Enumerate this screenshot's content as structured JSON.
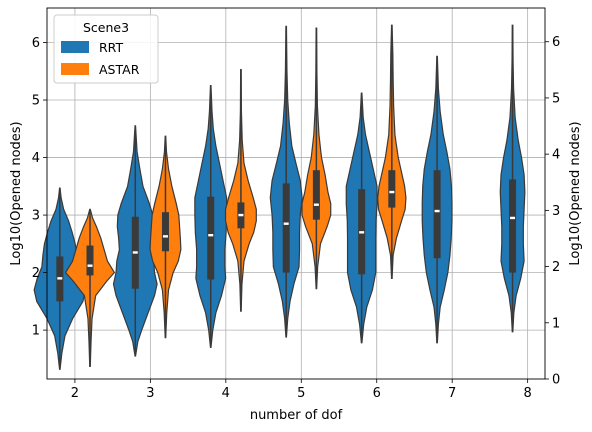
{
  "chart_data": {
    "type": "violin",
    "title": "",
    "xlabel": "number of dof",
    "ylabel_left": "Log10(Opened nodes)",
    "ylabel_right": "Log10(Opened nodes)",
    "categories": [
      "2",
      "3",
      "4",
      "5",
      "6",
      "7",
      "8"
    ],
    "ylim": [
      0.15,
      6.6
    ],
    "yticks": [
      1,
      2,
      3,
      4,
      5,
      6
    ],
    "right_ylim": [
      0,
      6.6
    ],
    "right_yticks": [
      0,
      1,
      2,
      3,
      4,
      5,
      6
    ],
    "grid": true,
    "legend": {
      "title": "Scene3",
      "placement": "top-left"
    },
    "series": [
      {
        "name": "RRT",
        "color": "#1f77b4",
        "violins": [
          {
            "category": "2",
            "min": 0.32,
            "max": 3.47,
            "q1": 1.5,
            "median": 1.9,
            "q3": 2.28,
            "profile": [
              [
                0.32,
                0.01
              ],
              [
                0.6,
                0.08
              ],
              [
                0.9,
                0.2
              ],
              [
                1.2,
                0.5
              ],
              [
                1.5,
                0.9
              ],
              [
                1.7,
                1.0
              ],
              [
                1.9,
                0.88
              ],
              [
                2.1,
                0.7
              ],
              [
                2.3,
                0.66
              ],
              [
                2.5,
                0.6
              ],
              [
                2.7,
                0.48
              ],
              [
                2.9,
                0.34
              ],
              [
                3.1,
                0.15
              ],
              [
                3.3,
                0.05
              ],
              [
                3.47,
                0.01
              ]
            ]
          },
          {
            "category": "3",
            "min": 0.55,
            "max": 4.55,
            "q1": 1.72,
            "median": 2.35,
            "q3": 2.97,
            "profile": [
              [
                0.55,
                0.01
              ],
              [
                0.8,
                0.1
              ],
              [
                1.0,
                0.25
              ],
              [
                1.3,
                0.5
              ],
              [
                1.6,
                0.75
              ],
              [
                1.8,
                0.85
              ],
              [
                2.0,
                0.75
              ],
              [
                2.2,
                0.72
              ],
              [
                2.4,
                0.62
              ],
              [
                2.6,
                0.65
              ],
              [
                2.8,
                0.7
              ],
              [
                3.0,
                0.68
              ],
              [
                3.2,
                0.55
              ],
              [
                3.5,
                0.3
              ],
              [
                3.8,
                0.18
              ],
              [
                4.1,
                0.07
              ],
              [
                4.55,
                0.01
              ]
            ]
          },
          {
            "category": "4",
            "min": 0.7,
            "max": 5.25,
            "q1": 1.88,
            "median": 2.65,
            "q3": 3.32,
            "profile": [
              [
                0.7,
                0.01
              ],
              [
                1.0,
                0.08
              ],
              [
                1.3,
                0.2
              ],
              [
                1.6,
                0.42
              ],
              [
                1.9,
                0.58
              ],
              [
                2.1,
                0.55
              ],
              [
                2.4,
                0.55
              ],
              [
                2.7,
                0.6
              ],
              [
                3.0,
                0.62
              ],
              [
                3.3,
                0.62
              ],
              [
                3.6,
                0.48
              ],
              [
                3.9,
                0.34
              ],
              [
                4.2,
                0.2
              ],
              [
                4.5,
                0.1
              ],
              [
                4.8,
                0.05
              ],
              [
                5.25,
                0.01
              ]
            ]
          },
          {
            "category": "5",
            "min": 0.88,
            "max": 6.28,
            "q1": 2.0,
            "median": 2.85,
            "q3": 3.55,
            "profile": [
              [
                0.88,
                0.01
              ],
              [
                1.2,
                0.06
              ],
              [
                1.5,
                0.15
              ],
              [
                1.8,
                0.3
              ],
              [
                2.1,
                0.5
              ],
              [
                2.4,
                0.52
              ],
              [
                2.7,
                0.52
              ],
              [
                3.0,
                0.55
              ],
              [
                3.3,
                0.62
              ],
              [
                3.6,
                0.55
              ],
              [
                3.9,
                0.38
              ],
              [
                4.2,
                0.22
              ],
              [
                4.6,
                0.12
              ],
              [
                5.0,
                0.06
              ],
              [
                5.5,
                0.03
              ],
              [
                6.28,
                0.01
              ]
            ]
          },
          {
            "category": "6",
            "min": 0.78,
            "max": 5.12,
            "q1": 1.97,
            "median": 2.7,
            "q3": 3.45,
            "profile": [
              [
                0.78,
                0.01
              ],
              [
                1.1,
                0.08
              ],
              [
                1.4,
                0.2
              ],
              [
                1.7,
                0.42
              ],
              [
                2.0,
                0.55
              ],
              [
                2.3,
                0.55
              ],
              [
                2.6,
                0.55
              ],
              [
                2.9,
                0.56
              ],
              [
                3.2,
                0.6
              ],
              [
                3.5,
                0.6
              ],
              [
                3.8,
                0.45
              ],
              [
                4.1,
                0.3
              ],
              [
                4.4,
                0.15
              ],
              [
                4.7,
                0.06
              ],
              [
                5.12,
                0.01
              ]
            ]
          },
          {
            "category": "7",
            "min": 0.78,
            "max": 5.76,
            "q1": 2.25,
            "median": 3.07,
            "q3": 3.78,
            "profile": [
              [
                0.78,
                0.01
              ],
              [
                1.1,
                0.05
              ],
              [
                1.4,
                0.12
              ],
              [
                1.7,
                0.28
              ],
              [
                2.0,
                0.42
              ],
              [
                2.3,
                0.5
              ],
              [
                2.6,
                0.55
              ],
              [
                2.9,
                0.58
              ],
              [
                3.2,
                0.58
              ],
              [
                3.5,
                0.56
              ],
              [
                3.8,
                0.5
              ],
              [
                4.1,
                0.38
              ],
              [
                4.4,
                0.24
              ],
              [
                4.8,
                0.12
              ],
              [
                5.2,
                0.05
              ],
              [
                5.76,
                0.01
              ]
            ]
          },
          {
            "category": "8",
            "min": 0.97,
            "max": 6.3,
            "q1": 2.0,
            "median": 2.95,
            "q3": 3.62,
            "profile": [
              [
                0.97,
                0.01
              ],
              [
                1.3,
                0.05
              ],
              [
                1.6,
                0.14
              ],
              [
                1.9,
                0.32
              ],
              [
                2.2,
                0.45
              ],
              [
                2.5,
                0.42
              ],
              [
                2.8,
                0.42
              ],
              [
                3.1,
                0.45
              ],
              [
                3.4,
                0.48
              ],
              [
                3.7,
                0.45
              ],
              [
                4.0,
                0.35
              ],
              [
                4.3,
                0.22
              ],
              [
                4.7,
                0.1
              ],
              [
                5.2,
                0.04
              ],
              [
                5.7,
                0.02
              ],
              [
                6.3,
                0.01
              ]
            ]
          }
        ]
      },
      {
        "name": "ASTAR",
        "color": "#ff7f0e",
        "violins": [
          {
            "category": "2",
            "min": 0.37,
            "max": 3.1,
            "q1": 1.95,
            "median": 2.12,
            "q3": 2.47,
            "profile": [
              [
                0.37,
                0.01
              ],
              [
                0.8,
                0.04
              ],
              [
                1.2,
                0.08
              ],
              [
                1.6,
                0.22
              ],
              [
                1.85,
                0.65
              ],
              [
                2.0,
                0.95
              ],
              [
                2.2,
                0.68
              ],
              [
                2.4,
                0.55
              ],
              [
                2.6,
                0.42
              ],
              [
                2.8,
                0.25
              ],
              [
                2.95,
                0.1
              ],
              [
                3.1,
                0.01
              ]
            ]
          },
          {
            "category": "3",
            "min": 0.87,
            "max": 4.37,
            "q1": 2.37,
            "median": 2.63,
            "q3": 3.05,
            "profile": [
              [
                0.87,
                0.01
              ],
              [
                1.3,
                0.05
              ],
              [
                1.7,
                0.12
              ],
              [
                2.0,
                0.3
              ],
              [
                2.2,
                0.5
              ],
              [
                2.4,
                0.6
              ],
              [
                2.6,
                0.58
              ],
              [
                2.8,
                0.55
              ],
              [
                3.0,
                0.52
              ],
              [
                3.2,
                0.42
              ],
              [
                3.5,
                0.25
              ],
              [
                3.8,
                0.12
              ],
              [
                4.1,
                0.04
              ],
              [
                4.37,
                0.01
              ]
            ]
          },
          {
            "category": "4",
            "min": 1.33,
            "max": 5.53,
            "q1": 2.77,
            "median": 3.0,
            "q3": 3.22,
            "profile": [
              [
                1.33,
                0.01
              ],
              [
                1.8,
                0.04
              ],
              [
                2.2,
                0.12
              ],
              [
                2.5,
                0.32
              ],
              [
                2.7,
                0.5
              ],
              [
                2.9,
                0.6
              ],
              [
                3.1,
                0.6
              ],
              [
                3.3,
                0.48
              ],
              [
                3.6,
                0.28
              ],
              [
                3.9,
                0.12
              ],
              [
                4.3,
                0.05
              ],
              [
                4.8,
                0.02
              ],
              [
                5.53,
                0.01
              ]
            ]
          },
          {
            "category": "5",
            "min": 1.72,
            "max": 6.25,
            "q1": 2.92,
            "median": 3.18,
            "q3": 3.78,
            "profile": [
              [
                1.72,
                0.01
              ],
              [
                2.1,
                0.05
              ],
              [
                2.5,
                0.16
              ],
              [
                2.8,
                0.42
              ],
              [
                3.0,
                0.56
              ],
              [
                3.2,
                0.56
              ],
              [
                3.4,
                0.45
              ],
              [
                3.7,
                0.34
              ],
              [
                4.0,
                0.2
              ],
              [
                4.4,
                0.1
              ],
              [
                4.9,
                0.04
              ],
              [
                5.5,
                0.02
              ],
              [
                6.25,
                0.01
              ]
            ]
          },
          {
            "category": "6",
            "min": 1.9,
            "max": 6.3,
            "q1": 3.13,
            "median": 3.4,
            "q3": 3.78,
            "profile": [
              [
                1.9,
                0.01
              ],
              [
                2.3,
                0.05
              ],
              [
                2.6,
                0.18
              ],
              [
                2.9,
                0.38
              ],
              [
                3.1,
                0.52
              ],
              [
                3.3,
                0.55
              ],
              [
                3.5,
                0.5
              ],
              [
                3.7,
                0.4
              ],
              [
                4.0,
                0.25
              ],
              [
                4.4,
                0.12
              ],
              [
                4.9,
                0.07
              ],
              [
                5.4,
                0.05
              ],
              [
                5.8,
                0.04
              ],
              [
                6.3,
                0.01
              ]
            ]
          }
        ]
      }
    ]
  }
}
